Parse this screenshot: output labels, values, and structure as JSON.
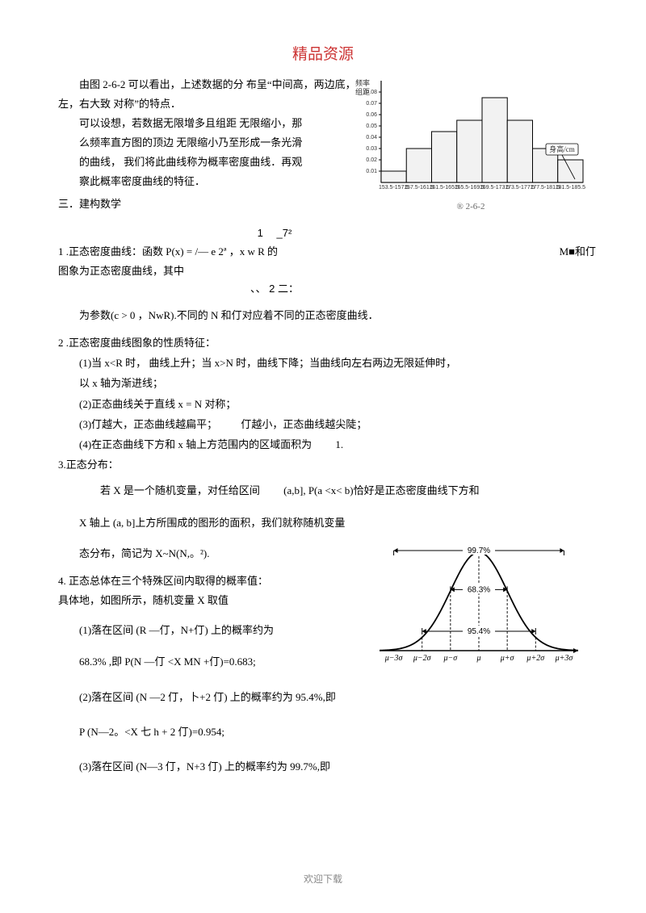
{
  "title": "精品资源",
  "intro": {
    "p1": "由图 2-6-2 可以看出，上述数据的分 布呈“中间高，两边底，左，右大致 对称”的特点．",
    "p2": "可以设想，若数据无限增多且组距 无限缩小，那",
    "p3": "么频率直方图的顶边 无限缩小乃至形成一条光滑",
    "p4": "的曲线， 我们将此曲线称为概率密度曲线．再观",
    "p5": "察此概率密度曲线的特征．"
  },
  "section3": "三．建构数学",
  "formula": {
    "sup": "1　 _7²",
    "line1_left": "1 .正态密度曲线：函数 P(x) = /— e 2ª ，x w R 的",
    "line1_right": "M■和仃",
    "line2": "图象为正态密度曲线，其中",
    "sub": "、、 2 二：",
    "param": "为参数(c > 0 ，NwR).不同的 N 和仃对应着不同的正态密度曲线．"
  },
  "prop_head": "2 .正态密度曲线图象的性质特征：",
  "props": {
    "p1": "(1)当 x<R 时， 曲线上升；当 x>N 时，曲线下降；当曲线向左右两边无限延伸时，",
    "p1b": "以 x 轴为渐进线；",
    "p2": "(2)正态曲线关于直线 x = N 对称；",
    "p3": "(3)仃越大，正态曲线越扁平； 　　仃越小，正态曲线越尖陡；",
    "p4": "(4)在正态曲线下方和 x 轴上方范围内的区域面积为　　 1."
  },
  "dist_head": "3.正态分布：",
  "dist": {
    "p1": "若 X 是一个随机变量，对任给区间　　 (a,b], P(a <x< b)恰好是正态密度曲线下方和",
    "p2": "X 轴上 (a, b]上方所围成的图形的面积，我们就称随机变量",
    "p3": "态分布，简记为 X~N(N,。²)."
  },
  "sec4_head": "4. 正态总体在三个特殊区间内取得的概率值：",
  "sec4_sub": "具体地，如图所示，随机变量 X 取值",
  "sec4": {
    "i1": "(1)落在区间 (R —仃，N+仃) 上的概率约为",
    "i1b": "68.3% ,即 P(N —仃 <X MN +仃)=0.683;",
    "i2": "(2)落在区间 (N —2 仃，卜+2 仃) 上的概率约为 95.4%,即",
    "i2b": "P (N—2。<X 七 h + 2 仃)=0.954;",
    "i3": "(3)落在区间 (N—3 仃，N+3 仃) 上的概率约为 99.7%,即"
  },
  "footer": "欢迎下载",
  "histogram": {
    "caption": "® 2-6-2",
    "y_label": "频率\n组距",
    "x_label": "身高/cm",
    "x_ticks": [
      "153.5-157.5",
      "157.5-161.5",
      "161.5-165.5",
      "165.5-169.5",
      "169.5-173.5",
      "173.5-177.5",
      "177.5-181.5",
      "181.5-185.5"
    ],
    "y_ticks": [
      "0.01",
      "0.02",
      "0.03",
      "0.04",
      "0.05",
      "0.06",
      "0.07",
      "0.08"
    ],
    "bars": [
      0.01,
      0.03,
      0.045,
      0.055,
      0.075,
      0.055,
      0.03,
      0.02
    ],
    "y_max": 0.09,
    "bar_color": "#f2f2f2",
    "bar_stroke": "#000000",
    "axis_color": "#000000"
  },
  "bell": {
    "pct683": "68.3%",
    "pct954": "95.4%",
    "pct997": "99.7%",
    "x_labels": [
      "μ−3σ",
      "μ−2σ",
      "μ−σ",
      "μ",
      "μ+σ",
      "μ+2σ",
      "μ+3σ"
    ],
    "line_color": "#000000",
    "dash_color": "#000000"
  }
}
